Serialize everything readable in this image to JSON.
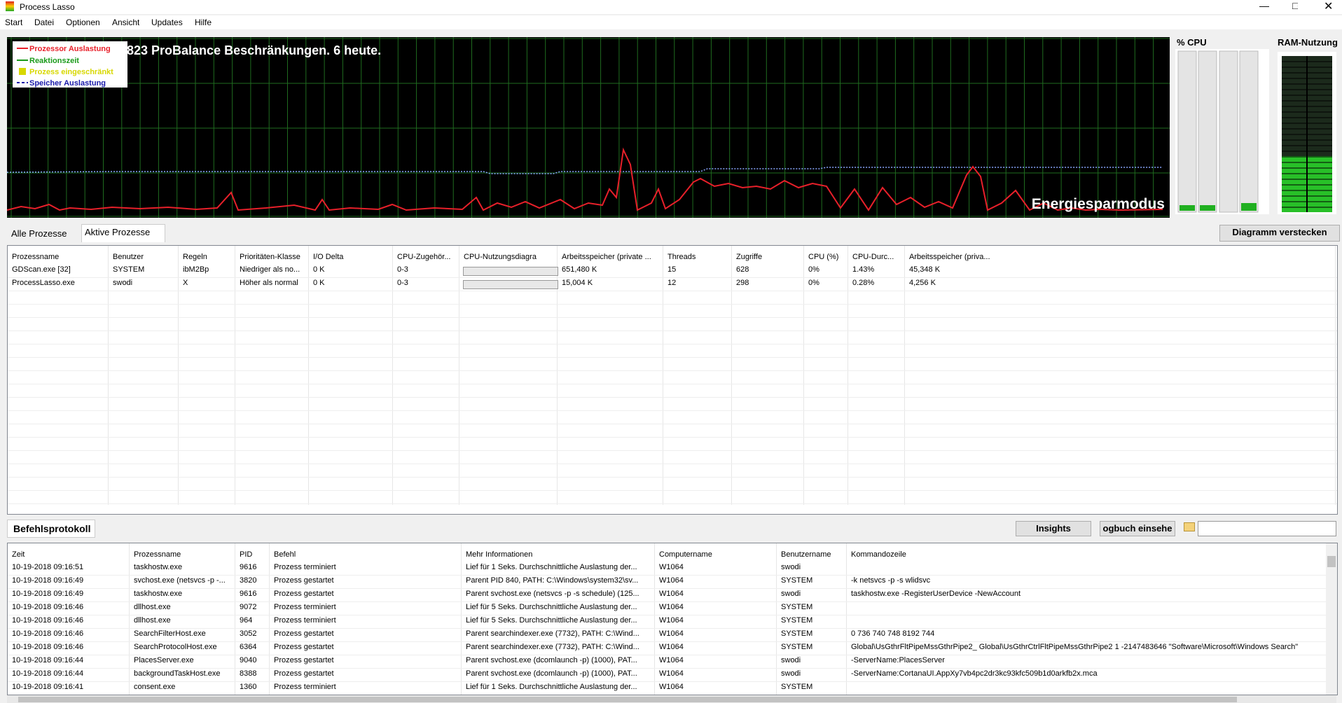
{
  "window": {
    "title": "Process Lasso"
  },
  "menu": [
    "Start",
    "Datei",
    "Optionen",
    "Ansicht",
    "Updates",
    "Hilfe"
  ],
  "graph": {
    "legend": [
      "Prozessor Auslastung",
      "Reaktionszeit",
      "Prozess eingeschränkt",
      "Speicher Auslastung"
    ],
    "headline": "823 ProBalance Beschränkungen. 6 heute.",
    "mode_label": "Energiesparmodus"
  },
  "cpu_panel": {
    "title": "% CPU"
  },
  "ram_panel": {
    "title": "RAM-Nutzung"
  },
  "tabs": [
    "Alle Prozesse",
    "Aktive Prozesse"
  ],
  "hide_button": "Diagramm verstecken",
  "process_table": {
    "columns": [
      "Prozessname",
      "Benutzer",
      "Regeln",
      "Prioritäten-Klasse",
      "I/O Delta",
      "CPU-Zugehör...",
      "CPU-Nutzungsdiagra",
      "Arbeitsspeicher (private ...",
      "Threads",
      "Zugriffe",
      "CPU (%)",
      "CPU-Durc...",
      "Arbeitsspeicher (priva..."
    ],
    "rows": [
      [
        "GDScan.exe [32]",
        "SYSTEM",
        "ibM2Bp",
        "Niedriger als no...",
        "0 K",
        "0-3",
        "",
        "651,480 K",
        "15",
        "628",
        "0%",
        "1.43%",
        "45,348 K"
      ],
      [
        "ProcessLasso.exe",
        "swodi",
        "X",
        "Höher als normal",
        "0 K",
        "0-3",
        "",
        "15,004 K",
        "12",
        "298",
        "0%",
        "0.28%",
        "4,256 K"
      ]
    ]
  },
  "log": {
    "title": "Befehlsprotokoll",
    "buttons": [
      "Insights",
      "ogbuch einsehe"
    ]
  },
  "log_table": {
    "columns": [
      "Zeit",
      "Prozessname",
      "PID",
      "Befehl",
      "Mehr Informationen",
      "Computername",
      "Benutzername",
      "Kommandozeile"
    ],
    "rows": [
      [
        "10-19-2018 09:16:51",
        "taskhostw.exe",
        "9616",
        "Prozess terminiert",
        "Lief für 1 Seks. Durchschnittliche Auslastung der...",
        "W1064",
        "swodi",
        ""
      ],
      [
        "10-19-2018 09:16:49",
        "svchost.exe (netsvcs -p -...",
        "3820",
        "Prozess gestartet",
        "Parent PID 840, PATH: C:\\Windows\\system32\\sv...",
        "W1064",
        "SYSTEM",
        "-k netsvcs -p -s wlidsvc"
      ],
      [
        "10-19-2018 09:16:49",
        "taskhostw.exe",
        "9616",
        "Prozess gestartet",
        "Parent svchost.exe (netsvcs -p -s schedule) (125...",
        "W1064",
        "swodi",
        "taskhostw.exe -RegisterUserDevice -NewAccount"
      ],
      [
        "10-19-2018 09:16:46",
        "dllhost.exe",
        "9072",
        "Prozess terminiert",
        "Lief für 5 Seks. Durchschnittliche Auslastung der...",
        "W1064",
        "SYSTEM",
        ""
      ],
      [
        "10-19-2018 09:16:46",
        "dllhost.exe",
        "964",
        "Prozess terminiert",
        "Lief für 5 Seks. Durchschnittliche Auslastung der...",
        "W1064",
        "SYSTEM",
        ""
      ],
      [
        "10-19-2018 09:16:46",
        "SearchFilterHost.exe",
        "3052",
        "Prozess gestartet",
        "Parent searchindexer.exe (7732), PATH: C:\\Wind...",
        "W1064",
        "SYSTEM",
        "0 736 740 748 8192 744"
      ],
      [
        "10-19-2018 09:16:46",
        "SearchProtocolHost.exe",
        "6364",
        "Prozess gestartet",
        "Parent searchindexer.exe (7732), PATH: C:\\Wind...",
        "W1064",
        "SYSTEM",
        "Global\\UsGthrFltPipeMssGthrPipe2_ Global\\UsGthrCtrlFltPipeMssGthrPipe2 1 -2147483646 \"Software\\Microsoft\\Windows Search\""
      ],
      [
        "10-19-2018 09:16:44",
        "PlacesServer.exe",
        "9040",
        "Prozess gestartet",
        "Parent svchost.exe (dcomlaunch -p) (1000), PAT...",
        "W1064",
        "swodi",
        "-ServerName:PlacesServer"
      ],
      [
        "10-19-2018 09:16:44",
        "backgroundTaskHost.exe",
        "8388",
        "Prozess gestartet",
        "Parent svchost.exe (dcomlaunch -p) (1000), PAT...",
        "W1064",
        "swodi",
        "-ServerName:CortanaUI.AppXy7vb4pc2dr3kc93kfc509b1d0arkfb2x.mca"
      ],
      [
        "10-19-2018 09:16:41",
        "consent.exe",
        "1360",
        "Prozess terminiert",
        "Lief für 1 Seks. Durchschnittliche Auslastung der...",
        "W1064",
        "SYSTEM",
        ""
      ]
    ]
  }
}
